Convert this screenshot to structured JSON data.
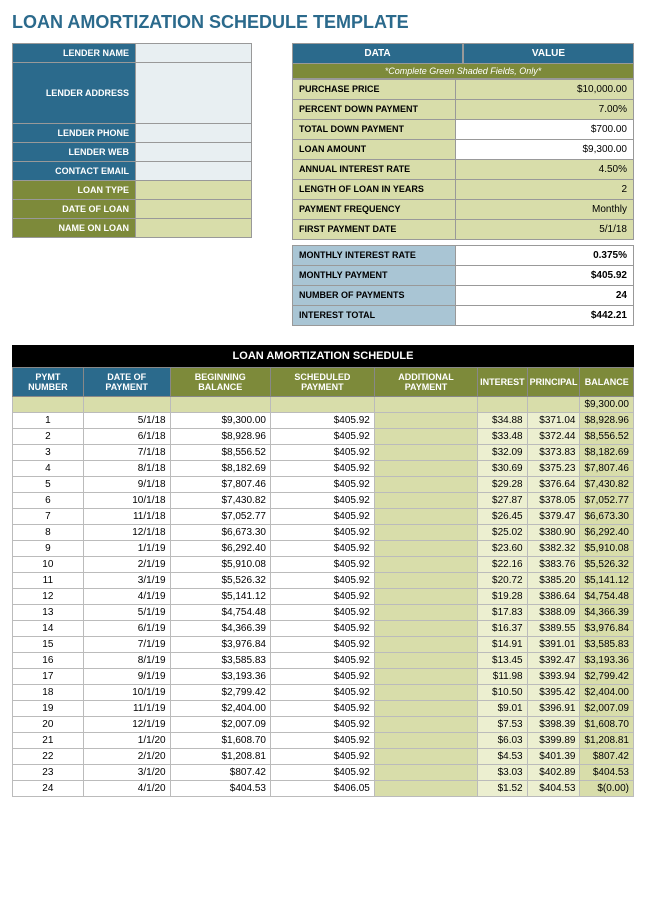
{
  "title": "LOAN AMORTIZATION SCHEDULE TEMPLATE",
  "lender": {
    "labels": {
      "name": "LENDER NAME",
      "address": "LENDER ADDRESS",
      "phone": "LENDER PHONE",
      "web": "LENDER WEB",
      "email": "CONTACT EMAIL",
      "loan_type": "LOAN TYPE",
      "date_of_loan": "DATE OF LOAN",
      "name_on_loan": "NAME ON LOAN"
    }
  },
  "data_box": {
    "headers": {
      "data": "DATA",
      "value": "VALUE"
    },
    "note": "*Complete Green Shaded Fields, Only*",
    "rows": [
      {
        "label": "PURCHASE PRICE",
        "value": "$10,000.00",
        "lbl": "green",
        "val": "green"
      },
      {
        "label": "PERCENT DOWN PAYMENT",
        "value": "7.00%",
        "lbl": "green",
        "val": "green"
      },
      {
        "label": "TOTAL DOWN PAYMENT",
        "value": "$700.00",
        "lbl": "green",
        "val": "white"
      },
      {
        "label": "LOAN AMOUNT",
        "value": "$9,300.00",
        "lbl": "green",
        "val": "white"
      },
      {
        "label": "ANNUAL INTEREST RATE",
        "value": "4.50%",
        "lbl": "green",
        "val": "green"
      },
      {
        "label": "LENGTH OF LOAN IN YEARS",
        "value": "2",
        "lbl": "green",
        "val": "green"
      },
      {
        "label": "PAYMENT FREQUENCY",
        "value": "Monthly",
        "lbl": "green",
        "val": "green"
      },
      {
        "label": "FIRST PAYMENT DATE",
        "value": "5/1/18",
        "lbl": "green",
        "val": "green"
      },
      {
        "label": "MONTHLY INTEREST RATE",
        "value": "0.375%",
        "lbl": "blue",
        "val": "white",
        "bold": true
      },
      {
        "label": "MONTHLY PAYMENT",
        "value": "$405.92",
        "lbl": "blue",
        "val": "white",
        "bold": true
      },
      {
        "label": "NUMBER OF PAYMENTS",
        "value": "24",
        "lbl": "blue",
        "val": "white",
        "bold": true
      },
      {
        "label": "INTEREST TOTAL",
        "value": "$442.21",
        "lbl": "blue",
        "val": "white",
        "bold": true
      }
    ]
  },
  "schedule": {
    "title": "LOAN AMORTIZATION SCHEDULE",
    "headers": [
      "PYMT NUMBER",
      "DATE OF PAYMENT",
      "BEGINNING BALANCE",
      "SCHEDULED PAYMENT",
      "ADDITIONAL PAYMENT",
      "INTEREST",
      "PRINCIPAL",
      "BALANCE"
    ],
    "header_colors": [
      "blue",
      "blue",
      "green",
      "green",
      "green",
      "green",
      "green",
      "green"
    ],
    "col_bg": [
      "white",
      "white",
      "white",
      "white",
      "greenstrong",
      "greenlight",
      "greenlight",
      "greenstrong"
    ],
    "balance_start": "$9,300.00",
    "rows": [
      [
        "1",
        "5/1/18",
        "$9,300.00",
        "$405.92",
        "",
        "$34.88",
        "$371.04",
        "$8,928.96"
      ],
      [
        "2",
        "6/1/18",
        "$8,928.96",
        "$405.92",
        "",
        "$33.48",
        "$372.44",
        "$8,556.52"
      ],
      [
        "3",
        "7/1/18",
        "$8,556.52",
        "$405.92",
        "",
        "$32.09",
        "$373.83",
        "$8,182.69"
      ],
      [
        "4",
        "8/1/18",
        "$8,182.69",
        "$405.92",
        "",
        "$30.69",
        "$375.23",
        "$7,807.46"
      ],
      [
        "5",
        "9/1/18",
        "$7,807.46",
        "$405.92",
        "",
        "$29.28",
        "$376.64",
        "$7,430.82"
      ],
      [
        "6",
        "10/1/18",
        "$7,430.82",
        "$405.92",
        "",
        "$27.87",
        "$378.05",
        "$7,052.77"
      ],
      [
        "7",
        "11/1/18",
        "$7,052.77",
        "$405.92",
        "",
        "$26.45",
        "$379.47",
        "$6,673.30"
      ],
      [
        "8",
        "12/1/18",
        "$6,673.30",
        "$405.92",
        "",
        "$25.02",
        "$380.90",
        "$6,292.40"
      ],
      [
        "9",
        "1/1/19",
        "$6,292.40",
        "$405.92",
        "",
        "$23.60",
        "$382.32",
        "$5,910.08"
      ],
      [
        "10",
        "2/1/19",
        "$5,910.08",
        "$405.92",
        "",
        "$22.16",
        "$383.76",
        "$5,526.32"
      ],
      [
        "11",
        "3/1/19",
        "$5,526.32",
        "$405.92",
        "",
        "$20.72",
        "$385.20",
        "$5,141.12"
      ],
      [
        "12",
        "4/1/19",
        "$5,141.12",
        "$405.92",
        "",
        "$19.28",
        "$386.64",
        "$4,754.48"
      ],
      [
        "13",
        "5/1/19",
        "$4,754.48",
        "$405.92",
        "",
        "$17.83",
        "$388.09",
        "$4,366.39"
      ],
      [
        "14",
        "6/1/19",
        "$4,366.39",
        "$405.92",
        "",
        "$16.37",
        "$389.55",
        "$3,976.84"
      ],
      [
        "15",
        "7/1/19",
        "$3,976.84",
        "$405.92",
        "",
        "$14.91",
        "$391.01",
        "$3,585.83"
      ],
      [
        "16",
        "8/1/19",
        "$3,585.83",
        "$405.92",
        "",
        "$13.45",
        "$392.47",
        "$3,193.36"
      ],
      [
        "17",
        "9/1/19",
        "$3,193.36",
        "$405.92",
        "",
        "$11.98",
        "$393.94",
        "$2,799.42"
      ],
      [
        "18",
        "10/1/19",
        "$2,799.42",
        "$405.92",
        "",
        "$10.50",
        "$395.42",
        "$2,404.00"
      ],
      [
        "19",
        "11/1/19",
        "$2,404.00",
        "$405.92",
        "",
        "$9.01",
        "$396.91",
        "$2,007.09"
      ],
      [
        "20",
        "12/1/19",
        "$2,007.09",
        "$405.92",
        "",
        "$7.53",
        "$398.39",
        "$1,608.70"
      ],
      [
        "21",
        "1/1/20",
        "$1,608.70",
        "$405.92",
        "",
        "$6.03",
        "$399.89",
        "$1,208.81"
      ],
      [
        "22",
        "2/1/20",
        "$1,208.81",
        "$405.92",
        "",
        "$4.53",
        "$401.39",
        "$807.42"
      ],
      [
        "23",
        "3/1/20",
        "$807.42",
        "$405.92",
        "",
        "$3.03",
        "$402.89",
        "$404.53"
      ],
      [
        "24",
        "4/1/20",
        "$404.53",
        "$406.05",
        "",
        "$1.52",
        "$404.53",
        "$(0.00)"
      ]
    ]
  }
}
